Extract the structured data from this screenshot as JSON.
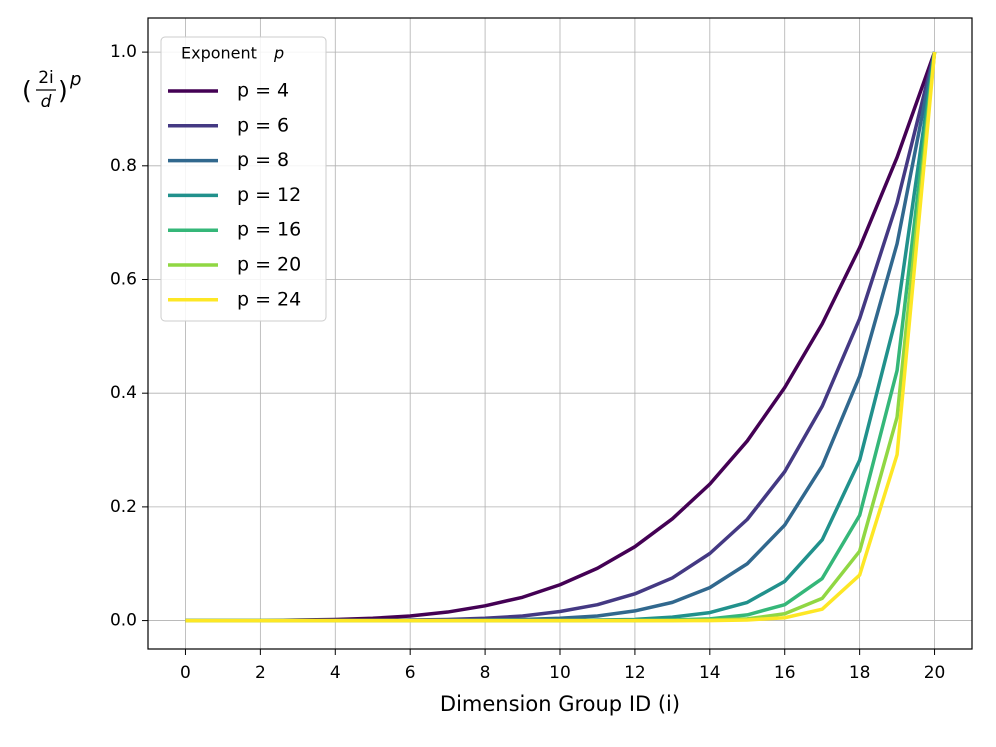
{
  "chart_data": {
    "type": "line",
    "xlabel": "Dimension Group ID (i)",
    "ylabel_open": "(",
    "ylabel_numerator": "2i",
    "ylabel_denominator": "d",
    "ylabel_close": ")",
    "ylabel_exponent": "p",
    "legend_title": "Exponent",
    "legend_title_symbol": "p",
    "legend_loc": "upper left",
    "grid": true,
    "x": [
      0,
      1,
      2,
      3,
      4,
      5,
      6,
      7,
      8,
      9,
      10,
      11,
      12,
      13,
      14,
      15,
      16,
      17,
      18,
      19,
      20
    ],
    "xlim": [
      -1,
      21
    ],
    "xticks": [
      0,
      2,
      4,
      6,
      8,
      10,
      12,
      14,
      16,
      18,
      20
    ],
    "ylim": [
      -0.05,
      1.06
    ],
    "yticks": [
      {
        "value": 0,
        "label": "0.0"
      },
      0.2,
      0.4,
      0.6,
      0.8,
      {
        "value": 1,
        "label": "1.0"
      }
    ],
    "series": [
      {
        "name": "p = 4",
        "color": "#440154",
        "values": [
          0,
          0,
          0,
          0.001,
          0.002,
          0.004,
          0.008,
          0.015,
          0.026,
          0.041,
          0.063,
          0.092,
          0.13,
          0.179,
          0.24,
          0.316,
          0.41,
          0.522,
          0.656,
          0.815,
          1
        ]
      },
      {
        "name": "p = 6",
        "color": "#443983",
        "values": [
          0,
          0,
          0,
          0,
          0,
          0,
          0.001,
          0.002,
          0.004,
          0.008,
          0.016,
          0.028,
          0.047,
          0.075,
          0.118,
          0.178,
          0.262,
          0.377,
          0.531,
          0.735,
          1
        ]
      },
      {
        "name": "p = 8",
        "color": "#31688e",
        "values": [
          0,
          0,
          0,
          0,
          0,
          0,
          0,
          0,
          0.001,
          0.002,
          0.004,
          0.008,
          0.017,
          0.032,
          0.058,
          0.1,
          0.168,
          0.272,
          0.43,
          0.663,
          1
        ]
      },
      {
        "name": "p = 12",
        "color": "#21918c",
        "values": [
          0,
          0,
          0,
          0,
          0,
          0,
          0,
          0,
          0,
          0,
          0,
          0.001,
          0.002,
          0.006,
          0.014,
          0.032,
          0.069,
          0.142,
          0.282,
          0.54,
          1
        ]
      },
      {
        "name": "p = 16",
        "color": "#35b779",
        "values": [
          0,
          0,
          0,
          0,
          0,
          0,
          0,
          0,
          0,
          0,
          0,
          0,
          0,
          0.001,
          0.003,
          0.01,
          0.028,
          0.074,
          0.185,
          0.44,
          1
        ]
      },
      {
        "name": "p = 20",
        "color": "#90d743",
        "values": [
          0,
          0,
          0,
          0,
          0,
          0,
          0,
          0,
          0,
          0,
          0,
          0,
          0,
          0,
          0.001,
          0.003,
          0.012,
          0.039,
          0.122,
          0.358,
          1
        ]
      },
      {
        "name": "p = 24",
        "color": "#fde725",
        "values": [
          0,
          0,
          0,
          0,
          0,
          0,
          0,
          0,
          0,
          0,
          0,
          0,
          0,
          0,
          0,
          0.001,
          0.005,
          0.02,
          0.08,
          0.292,
          1
        ]
      }
    ]
  }
}
